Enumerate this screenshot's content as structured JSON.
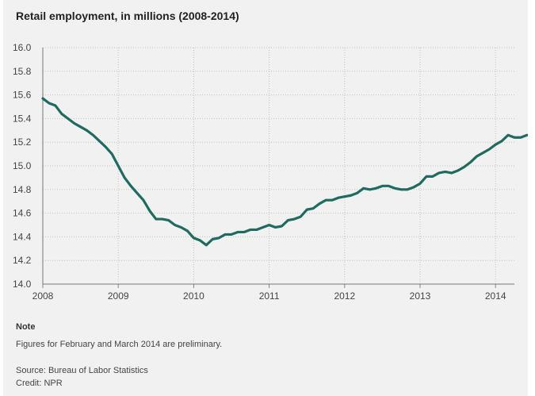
{
  "chart_data": {
    "type": "line",
    "title": "Retail employment, in millions (2008-2014)",
    "xlabel": "",
    "ylabel": "",
    "x_ticks": [
      "2008",
      "2009",
      "2010",
      "2011",
      "2012",
      "2013",
      "2014"
    ],
    "y_ticks": [
      "14.0",
      "14.2",
      "14.4",
      "14.6",
      "14.8",
      "15.0",
      "15.2",
      "15.4",
      "15.6",
      "15.8",
      "16.0"
    ],
    "xlim": [
      2008,
      2014.25
    ],
    "ylim": [
      14.0,
      16.0
    ],
    "grid": true,
    "line_color": "#1f6b5f",
    "series": [
      {
        "name": "",
        "x_start": 2008,
        "step": "monthly",
        "values": [
          15.57,
          15.53,
          15.51,
          15.44,
          15.4,
          15.36,
          15.33,
          15.3,
          15.26,
          15.21,
          15.16,
          15.1,
          15.0,
          14.9,
          14.83,
          14.77,
          14.71,
          14.62,
          14.55,
          14.55,
          14.54,
          14.5,
          14.48,
          14.45,
          14.39,
          14.37,
          14.33,
          14.38,
          14.39,
          14.42,
          14.42,
          14.44,
          14.44,
          14.46,
          14.46,
          14.48,
          14.5,
          14.48,
          14.49,
          14.54,
          14.55,
          14.57,
          14.63,
          14.64,
          14.68,
          14.71,
          14.71,
          14.73,
          14.74,
          14.75,
          14.77,
          14.81,
          14.8,
          14.81,
          14.83,
          14.83,
          14.81,
          14.8,
          14.8,
          14.82,
          14.85,
          14.91,
          14.91,
          14.94,
          14.95,
          14.94,
          14.96,
          14.99,
          15.03,
          15.08,
          15.11,
          15.14,
          15.18,
          15.21,
          15.26,
          15.24,
          15.24,
          15.26
        ]
      }
    ]
  },
  "note": {
    "heading": "Note",
    "text": "Figures for February and March 2014 are preliminary."
  },
  "source": "Source: Bureau of Labor Statistics",
  "credit": "Credit: NPR"
}
